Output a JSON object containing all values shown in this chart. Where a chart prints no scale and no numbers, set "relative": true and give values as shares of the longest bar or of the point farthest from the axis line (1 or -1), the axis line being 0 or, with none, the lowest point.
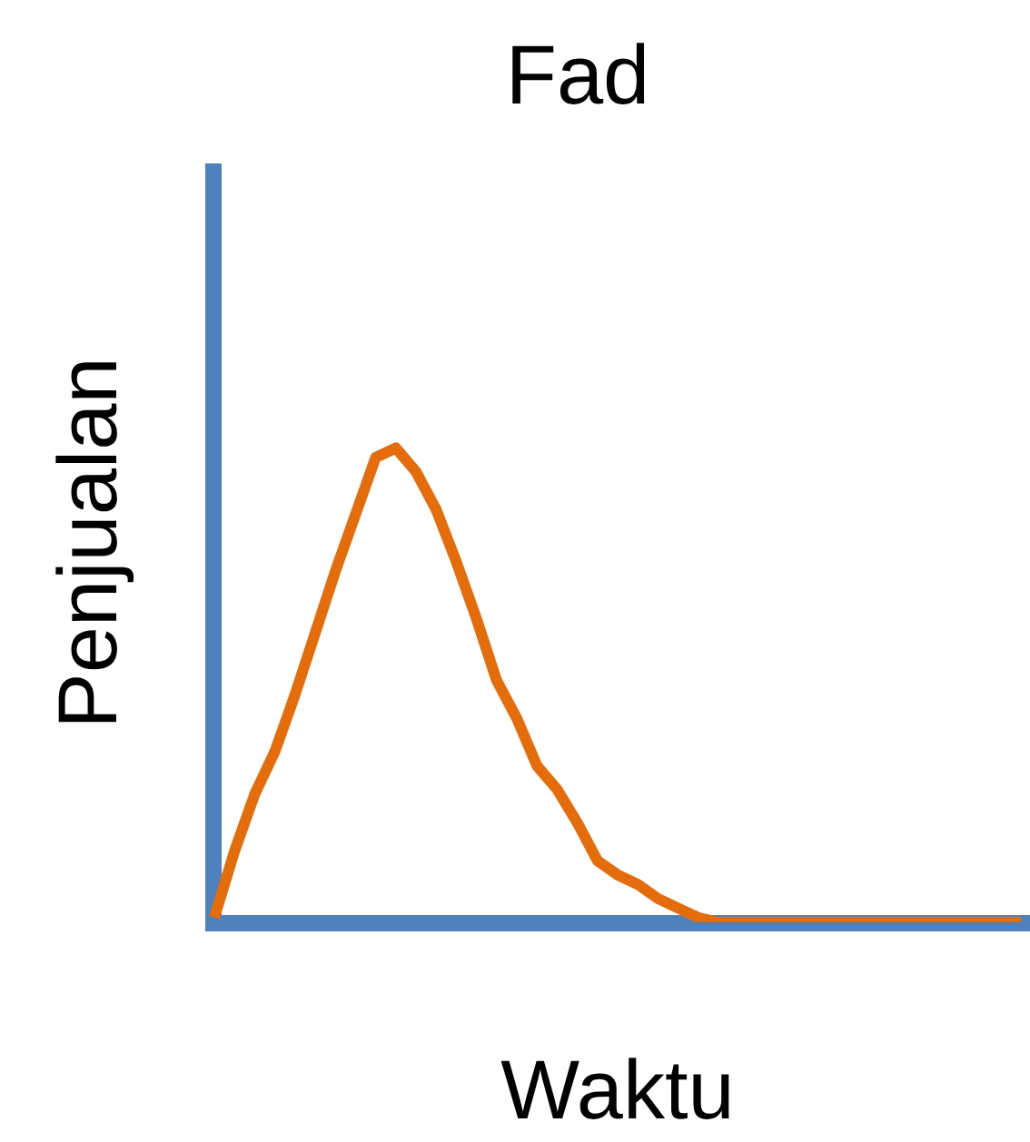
{
  "chart_data": {
    "type": "line",
    "title": "Fad",
    "xlabel": "Waktu",
    "ylabel": "Penjualan",
    "relative": true,
    "marker": "none",
    "line_style": "solid",
    "categories": [
      null,
      null,
      null,
      null,
      null,
      null,
      null,
      null,
      null,
      null,
      null,
      null,
      null,
      null,
      null,
      null,
      null,
      null,
      null,
      null,
      null,
      null,
      null,
      null,
      null,
      null,
      null,
      null,
      null,
      null,
      null,
      null,
      null,
      null,
      null,
      null,
      null,
      null,
      null,
      null,
      null
    ],
    "series": [
      {
        "color": "#e46c0a",
        "values": [
          0.01,
          0.15,
          0.27,
          0.36,
          0.48,
          0.61,
          0.74,
          0.86,
          0.98,
          1,
          0.95,
          0.87,
          0.76,
          0.64,
          0.51,
          0.43,
          0.33,
          0.28,
          0.21,
          0.13,
          0.1,
          0.08,
          0.05,
          0.03,
          0.01,
          0,
          0,
          0,
          0,
          0,
          0,
          0,
          0,
          0,
          0,
          0,
          0,
          0,
          0,
          0,
          0
        ]
      }
    ]
  }
}
